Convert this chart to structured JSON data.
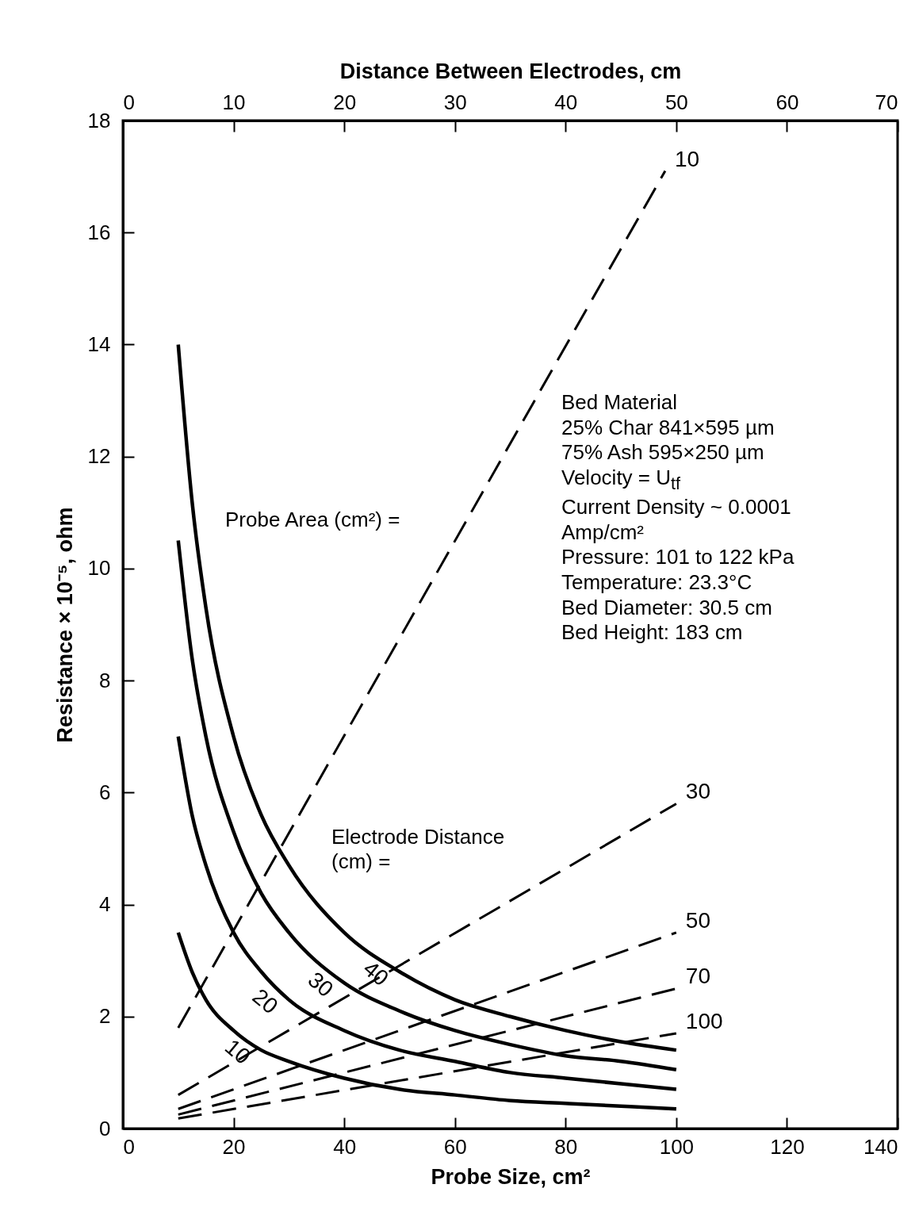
{
  "chart_data": {
    "type": "line",
    "xlabel": "Probe Size, cm²",
    "x2label": "Distance Between Electrodes, cm",
    "ylabel": "Resistance × 10⁻⁵, ohm",
    "xlim": [
      0,
      140
    ],
    "xticks": [
      0,
      20,
      40,
      60,
      80,
      100,
      120,
      140
    ],
    "x2lim": [
      0,
      70
    ],
    "x2ticks": [
      0,
      10,
      20,
      30,
      40,
      50,
      60,
      70
    ],
    "ylim": [
      0,
      18
    ],
    "yticks": [
      0,
      2,
      4,
      6,
      8,
      10,
      12,
      14,
      16,
      18
    ],
    "grid": false,
    "marker": "none",
    "series": [
      {
        "name": "10",
        "color": "#000000",
        "line_style": "solid",
        "x": [
          10,
          12.5,
          15,
          20,
          25,
          30,
          40,
          50,
          60,
          70,
          80,
          90,
          100
        ],
        "values": [
          3.5,
          2.8,
          2.3,
          1.75,
          1.4,
          1.2,
          0.9,
          0.7,
          0.6,
          0.5,
          0.45,
          0.4,
          0.35
        ]
      },
      {
        "name": "20",
        "color": "#000000",
        "line_style": "solid",
        "x": [
          10,
          12.5,
          15,
          20,
          25,
          30,
          40,
          50,
          60,
          70,
          80,
          90,
          100
        ],
        "values": [
          7,
          5.6,
          4.7,
          3.5,
          2.8,
          2.3,
          1.75,
          1.4,
          1.2,
          1,
          0.9,
          0.8,
          0.7
        ]
      },
      {
        "name": "30",
        "color": "#000000",
        "line_style": "solid",
        "x": [
          10,
          12.5,
          15,
          20,
          25,
          30,
          40,
          50,
          60,
          70,
          80,
          90,
          100
        ],
        "values": [
          10.5,
          8.4,
          7,
          5.3,
          4.2,
          3.5,
          2.6,
          2.1,
          1.75,
          1.5,
          1.3,
          1.2,
          1.05
        ]
      },
      {
        "name": "40",
        "color": "#000000",
        "line_style": "solid",
        "x": [
          10,
          12.5,
          15,
          20,
          25,
          30,
          40,
          50,
          60,
          70,
          80,
          90,
          100
        ],
        "values": [
          14,
          11.2,
          9.3,
          7,
          5.6,
          4.7,
          3.5,
          2.8,
          2.3,
          2,
          1.75,
          1.55,
          1.4
        ]
      },
      {
        "name": "10",
        "color": "#000000",
        "line_style": "dashed",
        "axis": "x2",
        "x": [
          5,
          49
        ],
        "values": [
          1.8,
          17.1
        ]
      },
      {
        "name": "30",
        "color": "#000000",
        "line_style": "dashed",
        "axis": "x2",
        "x": [
          5,
          50
        ],
        "values": [
          0.6,
          5.8
        ]
      },
      {
        "name": "50",
        "color": "#000000",
        "line_style": "dashed",
        "axis": "x2",
        "x": [
          5,
          50
        ],
        "values": [
          0.35,
          3.5
        ]
      },
      {
        "name": "70",
        "color": "#000000",
        "line_style": "dashed",
        "axis": "x2",
        "x": [
          5,
          50
        ],
        "values": [
          0.25,
          2.5
        ]
      },
      {
        "name": "100",
        "color": "#000000",
        "line_style": "dashed",
        "axis": "x2",
        "x": [
          5,
          50
        ],
        "values": [
          0.18,
          1.7
        ]
      }
    ],
    "annotations": [
      "Probe Area (cm²) =",
      "Electrode Distance (cm) =",
      "Bed Material",
      "25% Char 841×595 µm",
      "75% Ash 595×250 µm",
      "Velocity = U$_{tf}$",
      "Current Density ~ 0.0001 Amp/cm²",
      "Pressure: 101 to 122 kPa",
      "Temperature: 23.3°C",
      "Bed Diameter: 30.5 cm",
      "Bed Height: 183 cm"
    ]
  }
}
